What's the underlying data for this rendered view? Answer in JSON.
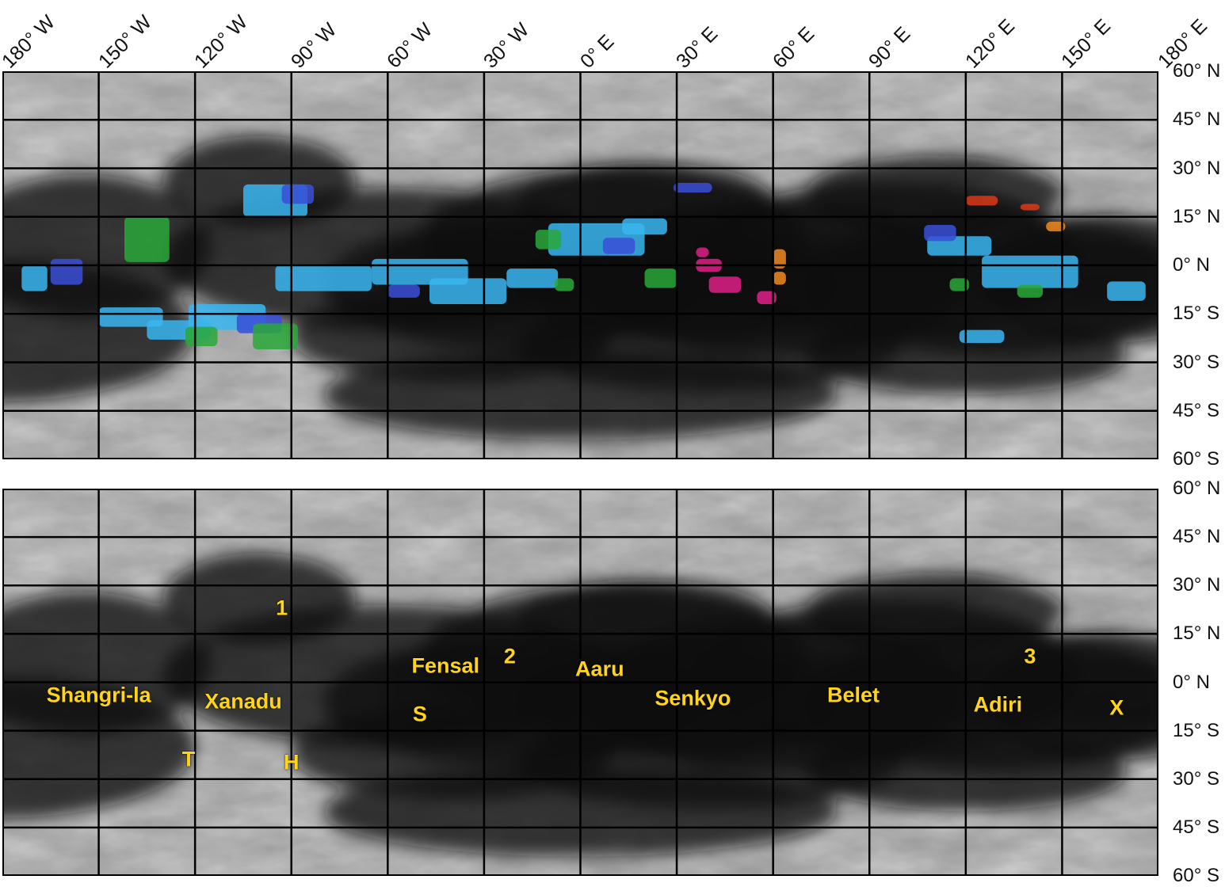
{
  "longitude_labels": [
    "180° W",
    "150° W",
    "120° W",
    "90° W",
    "60° W",
    "30° W",
    "0° E",
    "30° E",
    "60° E",
    "90° E",
    "120° E",
    "150° E",
    "180° E"
  ],
  "latitude_labels": [
    "60° N",
    "45° N",
    "30° N",
    "15° N",
    "0° N",
    "15° S",
    "30° S",
    "45° S",
    "60° S"
  ],
  "top_panel": {
    "legend_colors": {
      "cyan": "#38b6f0",
      "blue": "#3b4fd8",
      "green": "#2aa83a",
      "magenta": "#e0208a",
      "orange": "#f08a20",
      "red": "#d83a1a"
    }
  },
  "bottom_panel": {
    "place_names": [
      {
        "label": "Shangri-la",
        "lon": -150,
        "lat": -4
      },
      {
        "label": "Xanadu",
        "lon": -105,
        "lat": -6
      },
      {
        "label": "Fensal",
        "lon": -42,
        "lat": 5
      },
      {
        "label": "Aaru",
        "lon": 6,
        "lat": 4
      },
      {
        "label": "Senkyo",
        "lon": 35,
        "lat": -5
      },
      {
        "label": "Belet",
        "lon": 85,
        "lat": -4
      },
      {
        "label": "Adiri",
        "lon": 130,
        "lat": -7
      },
      {
        "label": "1",
        "lon": -93,
        "lat": 23
      },
      {
        "label": "2",
        "lon": -22,
        "lat": 8
      },
      {
        "label": "3",
        "lon": 140,
        "lat": 8
      },
      {
        "label": "S",
        "lon": -50,
        "lat": -10
      },
      {
        "label": "T",
        "lon": -122,
        "lat": -24
      },
      {
        "label": "H",
        "lon": -90,
        "lat": -25
      },
      {
        "label": "X",
        "lon": 167,
        "lat": -8
      }
    ]
  }
}
